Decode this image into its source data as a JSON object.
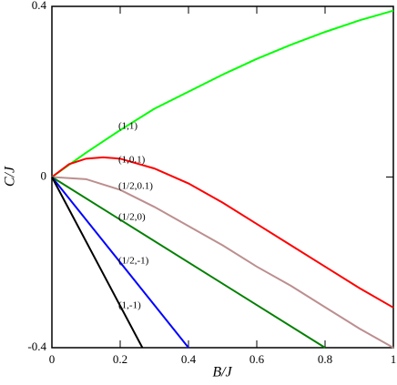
{
  "chart_data": {
    "type": "line",
    "xlabel": "B/J",
    "ylabel": "C/J",
    "xlim": [
      0,
      1
    ],
    "ylim": [
      -0.4,
      0.4
    ],
    "xticks": [
      0,
      0.2,
      0.4,
      0.6,
      0.8,
      1
    ],
    "yticks": [
      -0.4,
      0,
      0.4
    ],
    "series": [
      {
        "name": "(1,1)",
        "color": "#00ff00",
        "x": [
          0,
          0.1,
          0.2,
          0.3,
          0.4,
          0.5,
          0.6,
          0.7,
          0.8,
          0.9,
          1
        ],
        "values": [
          0,
          0.057,
          0.11,
          0.16,
          0.2,
          0.24,
          0.277,
          0.31,
          0.34,
          0.367,
          0.39
        ]
      },
      {
        "name": "(1,0.1)",
        "color": "#ff0000",
        "x": [
          0,
          0.05,
          0.1,
          0.15,
          0.2,
          0.3,
          0.4,
          0.5,
          0.6,
          0.7,
          0.8,
          0.9,
          1
        ],
        "values": [
          0,
          0.03,
          0.043,
          0.046,
          0.043,
          0.02,
          -0.015,
          -0.06,
          -0.11,
          -0.16,
          -0.21,
          -0.26,
          -0.306
        ]
      },
      {
        "name": "(1/2,0.1)",
        "color": "#bc8f8f",
        "x": [
          0,
          0.1,
          0.2,
          0.3,
          0.4,
          0.5,
          0.6,
          0.7,
          0.8,
          0.9,
          1
        ],
        "values": [
          0,
          -0.005,
          -0.03,
          -0.07,
          -0.115,
          -0.16,
          -0.21,
          -0.255,
          -0.305,
          -0.355,
          -0.4
        ]
      },
      {
        "name": "(1/2,0)",
        "color": "#008000",
        "x": [
          0,
          0.8
        ],
        "values": [
          0,
          -0.4
        ]
      },
      {
        "name": "(1/2,-1)",
        "color": "#0000ff",
        "x": [
          0,
          0.4
        ],
        "values": [
          0,
          -0.4
        ]
      },
      {
        "name": "(1,-1)",
        "color": "#000000",
        "x": [
          0,
          0.265
        ],
        "values": [
          0,
          -0.4
        ]
      }
    ]
  }
}
